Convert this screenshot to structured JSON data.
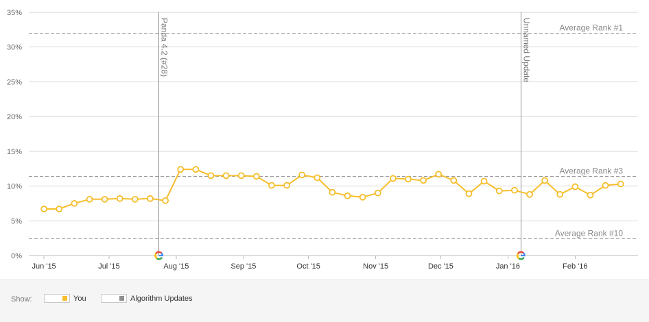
{
  "chart_data": {
    "type": "line",
    "ylabel": "",
    "xlabel": "",
    "ylim": [
      0,
      35
    ],
    "y_ticks": [
      "0%",
      "5%",
      "10%",
      "15%",
      "20%",
      "25%",
      "30%",
      "35%"
    ],
    "y_tick_values": [
      0,
      5,
      10,
      15,
      20,
      25,
      30,
      35
    ],
    "grid": true,
    "x_month_labels": [
      {
        "label": "Jun '15",
        "date": "2015-06-01"
      },
      {
        "label": "Jul '15",
        "date": "2015-07-01"
      },
      {
        "label": "Aug '15",
        "date": "2015-08-01"
      },
      {
        "label": "Sep '15",
        "date": "2015-09-01"
      },
      {
        "label": "Oct '15",
        "date": "2015-10-01"
      },
      {
        "label": "Nov '15",
        "date": "2015-11-01"
      },
      {
        "label": "Dec '15",
        "date": "2015-12-01"
      },
      {
        "label": "Jan '16",
        "date": "2016-01-01"
      },
      {
        "label": "Feb '16",
        "date": "2016-02-01"
      }
    ],
    "series": [
      {
        "name": "You",
        "color": "#f6be2c",
        "x": [
          "2015-06-01",
          "2015-06-08",
          "2015-06-15",
          "2015-06-22",
          "2015-06-29",
          "2015-07-06",
          "2015-07-13",
          "2015-07-20",
          "2015-07-27",
          "2015-08-03",
          "2015-08-10",
          "2015-08-17",
          "2015-08-24",
          "2015-08-31",
          "2015-09-07",
          "2015-09-14",
          "2015-09-21",
          "2015-09-28",
          "2015-10-05",
          "2015-10-12",
          "2015-10-19",
          "2015-10-26",
          "2015-11-02",
          "2015-11-09",
          "2015-11-16",
          "2015-11-23",
          "2015-11-30",
          "2015-12-07",
          "2015-12-14",
          "2015-12-21",
          "2015-12-28",
          "2016-01-04",
          "2016-01-11",
          "2016-01-18",
          "2016-01-25",
          "2016-02-01",
          "2016-02-08",
          "2016-02-15",
          "2016-02-22"
        ],
        "values": [
          6.7,
          6.7,
          7.5,
          8.1,
          8.1,
          8.2,
          8.1,
          8.2,
          7.9,
          12.4,
          12.4,
          11.5,
          11.5,
          11.5,
          11.4,
          10.1,
          10.1,
          11.6,
          11.2,
          9.1,
          8.6,
          8.4,
          9.0,
          11.1,
          11.0,
          10.8,
          11.7,
          10.8,
          8.9,
          10.7,
          9.3,
          9.4,
          8.8,
          10.8,
          8.8,
          9.9,
          8.7,
          10.1,
          10.3
        ]
      }
    ],
    "reference_lines": [
      {
        "label": "Average Rank #1",
        "value": 32
      },
      {
        "label": "Average Rank #3",
        "value": 11.4
      },
      {
        "label": "Average Rank #10",
        "value": 2.4
      }
    ],
    "events": [
      {
        "label": "Panda 4.2 (#28)",
        "date": "2015-07-24"
      },
      {
        "label": "Unnamed Update",
        "date": "2016-01-07"
      }
    ],
    "x_range": [
      "2015-05-25",
      "2016-03-01"
    ],
    "event_icon": "google-g-icon"
  },
  "legend": {
    "show_label": "Show:",
    "items": [
      {
        "label": "You",
        "color": "#f6be2c"
      },
      {
        "label": "Algorithm Updates",
        "color": "#8f8f8f"
      }
    ]
  }
}
